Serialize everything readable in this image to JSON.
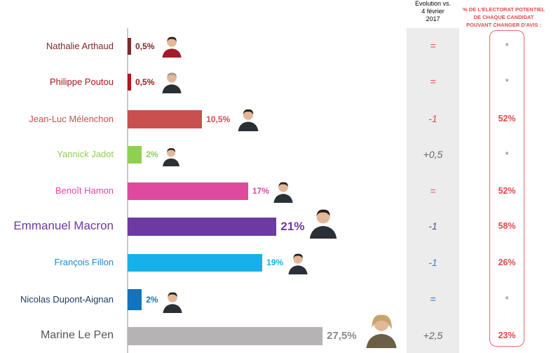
{
  "header": {
    "evolution_line1": "Evolution vs.",
    "evolution_line2": "4 février",
    "evolution_line3": "2017",
    "potential_line1": "% DE L'ELECTORAT POTENTIEL",
    "potential_line2": "DE CHAQUE CANDIDAT",
    "potential_line3": "POUVANT CHANGER D'AVIS :"
  },
  "chart_data": {
    "type": "bar",
    "orientation": "horizontal",
    "xlim": [
      0,
      27.5
    ],
    "categories": [
      "Nathalie Arthaud",
      "Philippe Poutou",
      "Jean-Luc Mélenchon",
      "Yannick Jadot",
      "Benoît Hamon",
      "Emmanuel Macron",
      "François Fillon",
      "Nicolas Dupont-Aignan",
      "Marine Le Pen"
    ],
    "values": [
      0.5,
      0.5,
      10.5,
      2,
      17,
      21,
      19,
      2,
      27.5
    ],
    "value_labels": [
      "0,5%",
      "0,5%",
      "10,5%",
      "2%",
      "17%",
      "21%",
      "19%",
      "2%",
      "27,5%"
    ],
    "evolution": [
      "=",
      "=",
      "-1",
      "+0,5",
      "=",
      "-1",
      "-1",
      "=",
      "+2,5"
    ],
    "change_mind": [
      "*",
      "*",
      "52%",
      "*",
      "52%",
      "58%",
      "26%",
      "*",
      "23%"
    ],
    "colors": [
      "#7a2a2a",
      "#b0141c",
      "#c8504e",
      "#8ed151",
      "#de4a9e",
      "#6d3aa3",
      "#18b0e8",
      "#1273be",
      "#b5b3b3"
    ],
    "avatar_icons": [
      "candidate-photo-icon",
      "candidate-photo-icon",
      "candidate-photo-icon",
      "candidate-photo-icon",
      "candidate-photo-icon",
      "candidate-photo-icon",
      "candidate-photo-icon",
      "candidate-photo-icon",
      "candidate-photo-icon"
    ]
  }
}
